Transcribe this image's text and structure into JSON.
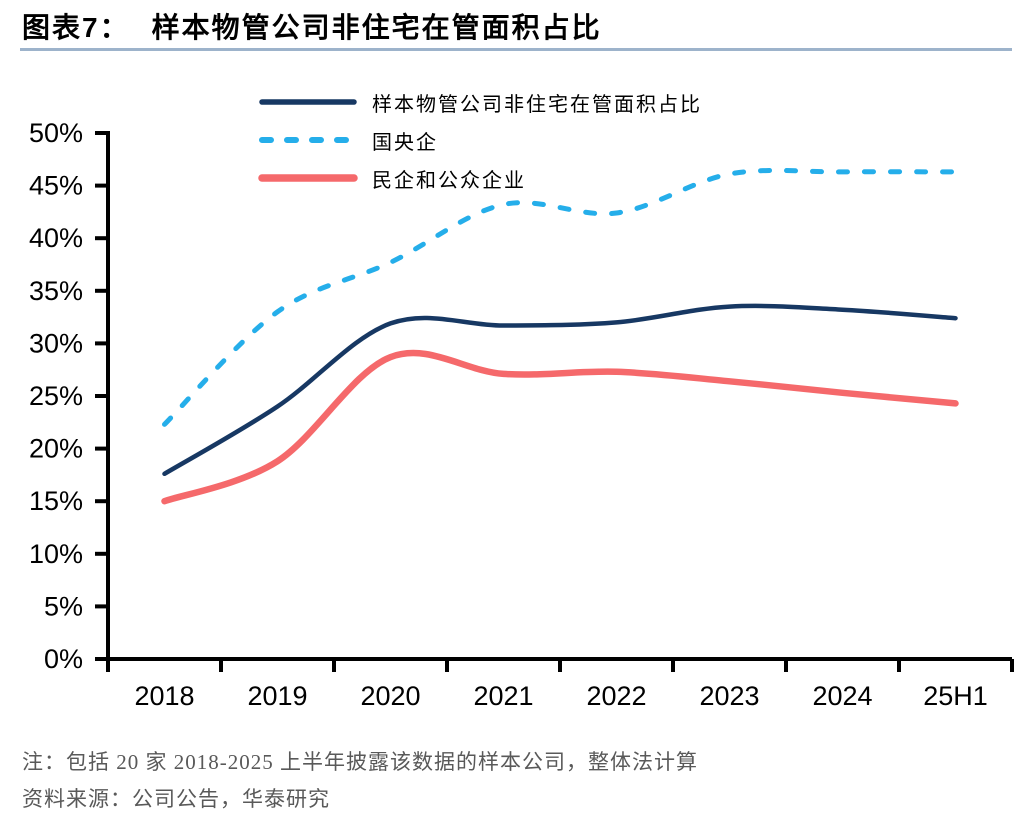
{
  "header": {
    "figure_label": "图表7：",
    "title": "样本物管公司非住宅在管面积占比"
  },
  "chart_data": {
    "type": "line",
    "categories": [
      "2018",
      "2019",
      "2020",
      "2021",
      "2022",
      "2023",
      "2024",
      "25H1"
    ],
    "series": [
      {
        "name": "样本物管公司非住宅在管面积占比",
        "style": "solid",
        "color": "#173863",
        "width": 4.5,
        "values": [
          17.6,
          24.0,
          31.9,
          31.7,
          32.0,
          33.5,
          33.2,
          32.4
        ]
      },
      {
        "name": "国央企",
        "style": "dashed",
        "color": "#25AEEA",
        "width": 5,
        "values": [
          22.3,
          33.0,
          37.7,
          43.2,
          42.4,
          46.1,
          46.3,
          46.3
        ]
      },
      {
        "name": "民企和公众企业",
        "style": "solid",
        "color": "#F5696B",
        "width": 6.5,
        "values": [
          15.0,
          18.8,
          28.7,
          27.1,
          27.3,
          26.4,
          25.3,
          24.3
        ]
      }
    ],
    "title": "样本物管公司非住宅在管面积占比",
    "xlabel": "",
    "ylabel": "",
    "ylim": [
      0,
      50
    ],
    "ytick_step": 5,
    "ytick_labels": [
      "0%",
      "5%",
      "10%",
      "15%",
      "20%",
      "25%",
      "30%",
      "35%",
      "40%",
      "45%",
      "50%"
    ],
    "grid": false,
    "legend_position": "top-inside"
  },
  "footer": {
    "note": "注：包括 20 家 2018-2025 上半年披露该数据的样本公司，整体法计算",
    "source": "资料来源：公司公告，华泰研究"
  },
  "colors": {
    "axis": "#000000",
    "title_rule": "#9DB3CB",
    "note_text": "#595959",
    "main_line": "#173863",
    "soe_line": "#25AEEA",
    "private_line": "#F5696B"
  }
}
